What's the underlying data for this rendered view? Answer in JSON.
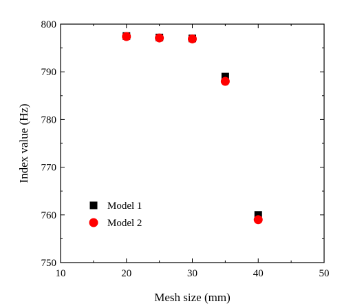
{
  "chart_data": {
    "type": "scatter",
    "title": "",
    "xlabel": "Mesh size (mm)",
    "ylabel": "Index value (Hz)",
    "xlim": [
      10,
      50
    ],
    "ylim": [
      750,
      800
    ],
    "xticks": [
      10,
      20,
      30,
      40,
      50
    ],
    "yticks": [
      750,
      760,
      770,
      780,
      790,
      800
    ],
    "grid": false,
    "legend_position": "bottom-left",
    "series": [
      {
        "name": "Model 1",
        "marker": "square",
        "color": "#000000",
        "x": [
          20,
          25,
          30,
          35,
          40
        ],
        "y": [
          797.5,
          797.2,
          797.0,
          789.0,
          760.0
        ]
      },
      {
        "name": "Model 2",
        "marker": "circle",
        "color": "#ff0000",
        "x": [
          20,
          25,
          30,
          35,
          40
        ],
        "y": [
          797.4,
          797.1,
          796.9,
          788.0,
          759.0
        ]
      }
    ]
  }
}
